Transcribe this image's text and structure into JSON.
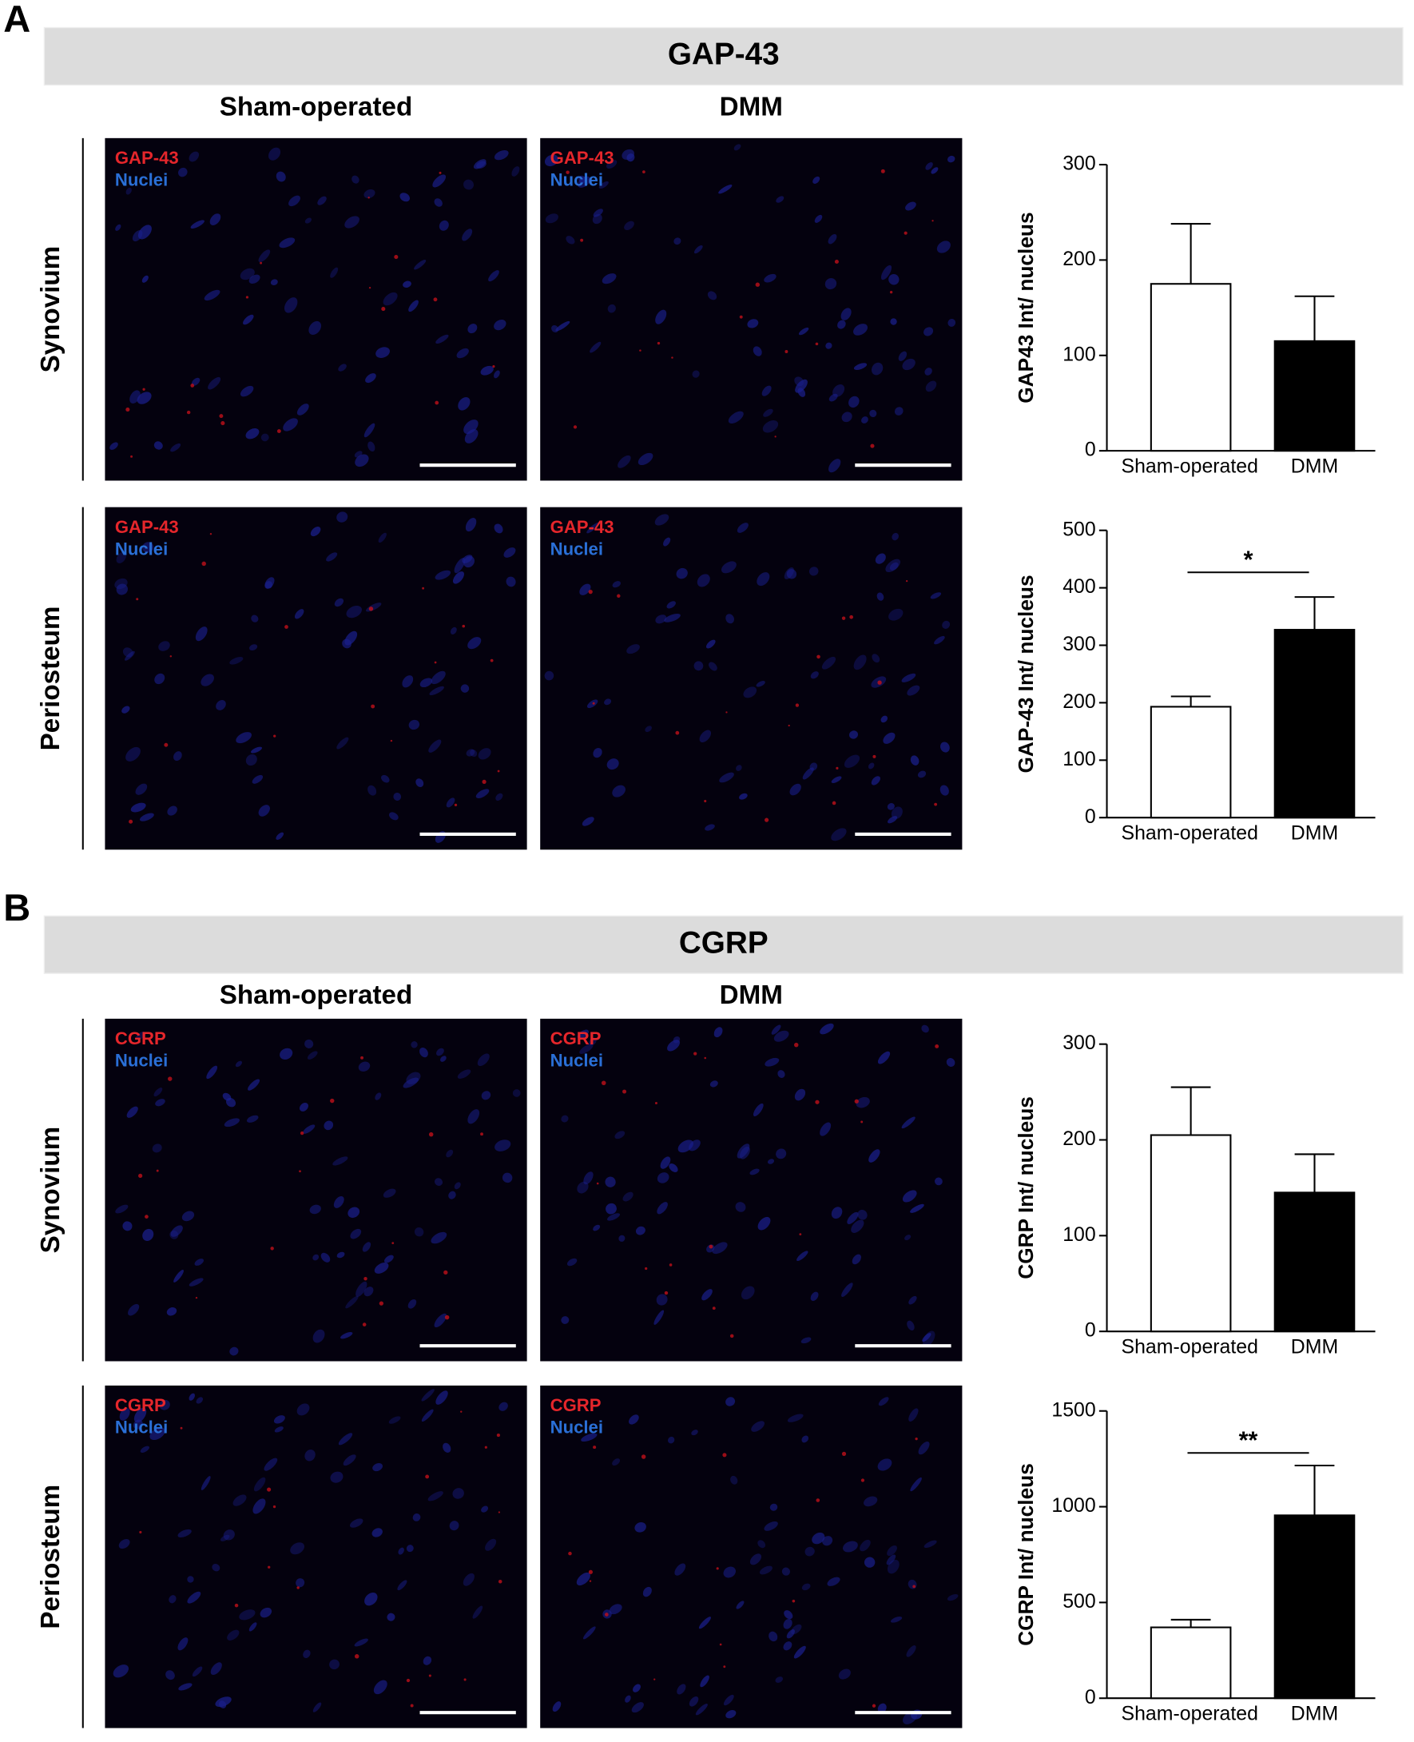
{
  "panels": [
    {
      "letter": "A",
      "header": "GAP-43",
      "columns": [
        "Sham-operated",
        "DMM"
      ],
      "rows": [
        "Synovium",
        "Periosteum"
      ],
      "marker_label": "GAP-43",
      "nuclei_label": "Nuclei"
    },
    {
      "letter": "B",
      "header": "CGRP",
      "columns": [
        "Sham-operated",
        "DMM"
      ],
      "rows": [
        "Synovium",
        "Periosteum"
      ],
      "marker_label": "CGRP",
      "nuclei_label": "Nuclei"
    }
  ],
  "chart_data": [
    {
      "type": "bar",
      "ylabel": "GAP43 Int/ nucleus",
      "categories": [
        "Sham-operated",
        "DMM"
      ],
      "values": [
        175,
        115
      ],
      "errors": [
        63,
        47
      ],
      "colors": [
        "#ffffff",
        "#000000"
      ],
      "ylim": [
        0,
        300
      ],
      "yticks": [
        0,
        100,
        200,
        300
      ]
    },
    {
      "type": "bar",
      "ylabel": "GAP-43 Int/ nucleus",
      "categories": [
        "Sham-operated",
        "DMM"
      ],
      "values": [
        193,
        327
      ],
      "errors": [
        18,
        57
      ],
      "colors": [
        "#ffffff",
        "#000000"
      ],
      "ylim": [
        0,
        500
      ],
      "yticks": [
        0,
        100,
        200,
        300,
        400,
        500
      ],
      "significance": "*"
    },
    {
      "type": "bar",
      "ylabel": "CGRP Int/ nucleus",
      "categories": [
        "Sham-operated",
        "DMM"
      ],
      "values": [
        205,
        145
      ],
      "errors": [
        50,
        40
      ],
      "colors": [
        "#ffffff",
        "#000000"
      ],
      "ylim": [
        0,
        300
      ],
      "yticks": [
        0,
        100,
        200,
        300
      ]
    },
    {
      "type": "bar",
      "ylabel": "CGRP Int/ nucleus",
      "categories": [
        "Sham-operated",
        "DMM"
      ],
      "values": [
        370,
        955
      ],
      "errors": [
        40,
        260
      ],
      "colors": [
        "#ffffff",
        "#000000"
      ],
      "ylim": [
        0,
        1500
      ],
      "yticks": [
        0,
        500,
        1000,
        1500
      ],
      "significance": "**"
    }
  ]
}
